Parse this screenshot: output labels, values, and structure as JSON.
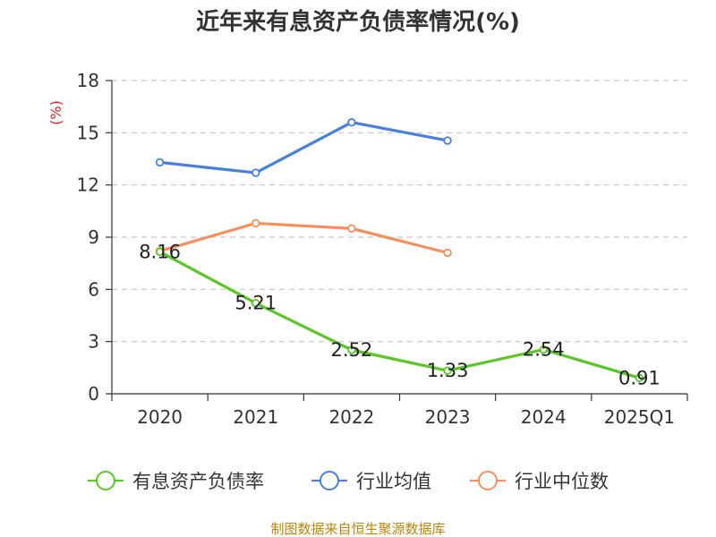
{
  "chart_data": {
    "type": "line",
    "title": "近年来有息资产负债率情况(%)",
    "ylabel": "(%)",
    "xlabel": "",
    "categories": [
      "2020",
      "2021",
      "2022",
      "2023",
      "2024",
      "2025Q1"
    ],
    "ylim": [
      0,
      18
    ],
    "yticks": [
      0,
      3,
      6,
      9,
      12,
      15,
      18
    ],
    "grid": true,
    "legend_position": "bottom",
    "series": [
      {
        "name": "有息资产负债率",
        "color": "#5cc527",
        "values": [
          8.16,
          5.21,
          2.52,
          1.33,
          2.54,
          0.91
        ],
        "labels": [
          "8.16",
          "5.21",
          "2.52",
          "1.33",
          "2.54",
          "0.91"
        ]
      },
      {
        "name": "行业均值",
        "color": "#4a7fdc",
        "values": [
          13.3,
          12.7,
          15.6,
          14.55,
          null,
          null
        ]
      },
      {
        "name": "行业中位数",
        "color": "#f5905e",
        "values": [
          8.2,
          9.8,
          9.5,
          8.1,
          null,
          null
        ]
      }
    ],
    "source": "制图数据来自恒生聚源数据库"
  }
}
